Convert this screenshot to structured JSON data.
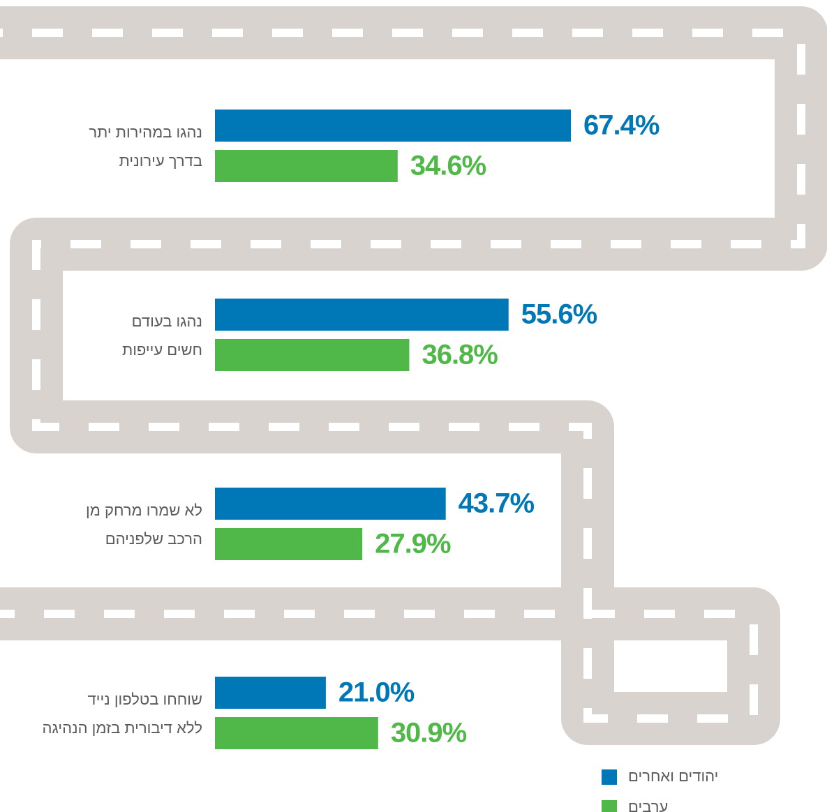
{
  "chart_data": {
    "type": "bar",
    "orientation": "horizontal",
    "categories": [
      [
        "נהגו במהירות יתר",
        "בדרך עירונית"
      ],
      [
        "נהגו בעודם",
        "חשים עייפות"
      ],
      [
        "לא שמרו מרחק מן",
        "הרכב שלפניהם"
      ],
      [
        "שוחחו בטלפון נייד",
        "ללא דיבורית בזמן הנהיגה"
      ]
    ],
    "series": [
      {
        "name": "יהודים ואחרים",
        "color": "#0077b6",
        "values": [
          67.4,
          55.6,
          43.7,
          21.0
        ],
        "value_labels": [
          "67.4%",
          "55.6%",
          "43.7%",
          "21.0%"
        ]
      },
      {
        "name": "ערבים",
        "color": "#50b848",
        "values": [
          34.6,
          36.8,
          27.9,
          30.9
        ],
        "value_labels": [
          "34.6%",
          "36.8%",
          "27.9%",
          "30.9%"
        ]
      }
    ]
  }
}
